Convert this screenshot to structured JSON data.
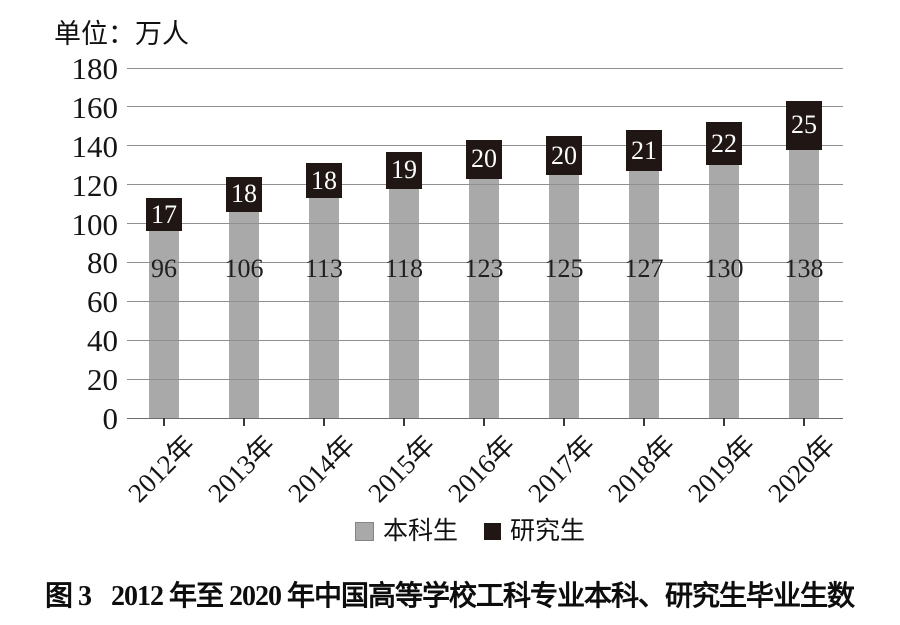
{
  "unit_label": "单位：万人",
  "chart_data": {
    "type": "bar",
    "stacked": true,
    "categories": [
      "2012年",
      "2013年",
      "2014年",
      "2015年",
      "2016年",
      "2017年",
      "2018年",
      "2019年",
      "2020年"
    ],
    "series": [
      {
        "name": "本科生",
        "color": "#a9a9a9",
        "values": [
          96,
          106,
          113,
          118,
          123,
          125,
          127,
          130,
          138
        ]
      },
      {
        "name": "研究生",
        "color": "#201613",
        "values": [
          17,
          18,
          18,
          19,
          20,
          20,
          21,
          22,
          25
        ]
      }
    ],
    "title": "",
    "xlabel": "",
    "ylabel": "单位：万人",
    "ylim": [
      0,
      180
    ],
    "ytick_step": 20,
    "grid": true,
    "legend_position": "bottom"
  },
  "legend": {
    "items": [
      {
        "label": "本科生",
        "color": "#a9a9a9"
      },
      {
        "label": "研究生",
        "color": "#201613"
      }
    ]
  },
  "caption": {
    "prefix": "图 3",
    "text": "2012 年至 2020 年中国高等学校工科专业本科、研究生毕业生数"
  }
}
